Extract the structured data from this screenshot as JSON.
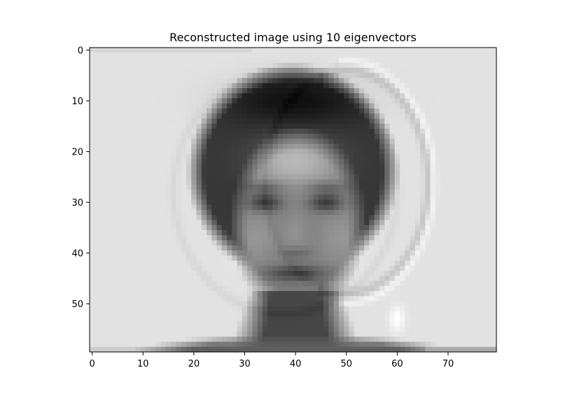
{
  "chart_data": {
    "type": "heatmap",
    "title": "Reconstructed image using 10 eigenvectors",
    "xlabel": "",
    "ylabel": "",
    "colormap": "gray",
    "image_shape": [
      60,
      80
    ],
    "xlim": [
      -0.5,
      79.5
    ],
    "ylim": [
      59.5,
      -0.5
    ],
    "x_ticks": [
      0,
      10,
      20,
      30,
      40,
      50,
      60,
      70
    ],
    "y_ticks": [
      0,
      10,
      20,
      30,
      40,
      50
    ],
    "x_tick_labels": [
      "0",
      "10",
      "20",
      "30",
      "40",
      "50",
      "60",
      "70"
    ],
    "y_tick_labels": [
      "0",
      "10",
      "20",
      "30",
      "40",
      "50"
    ],
    "grid": false,
    "colors": {
      "background": "#e2e2e2",
      "axes_edge": "#000000"
    }
  }
}
